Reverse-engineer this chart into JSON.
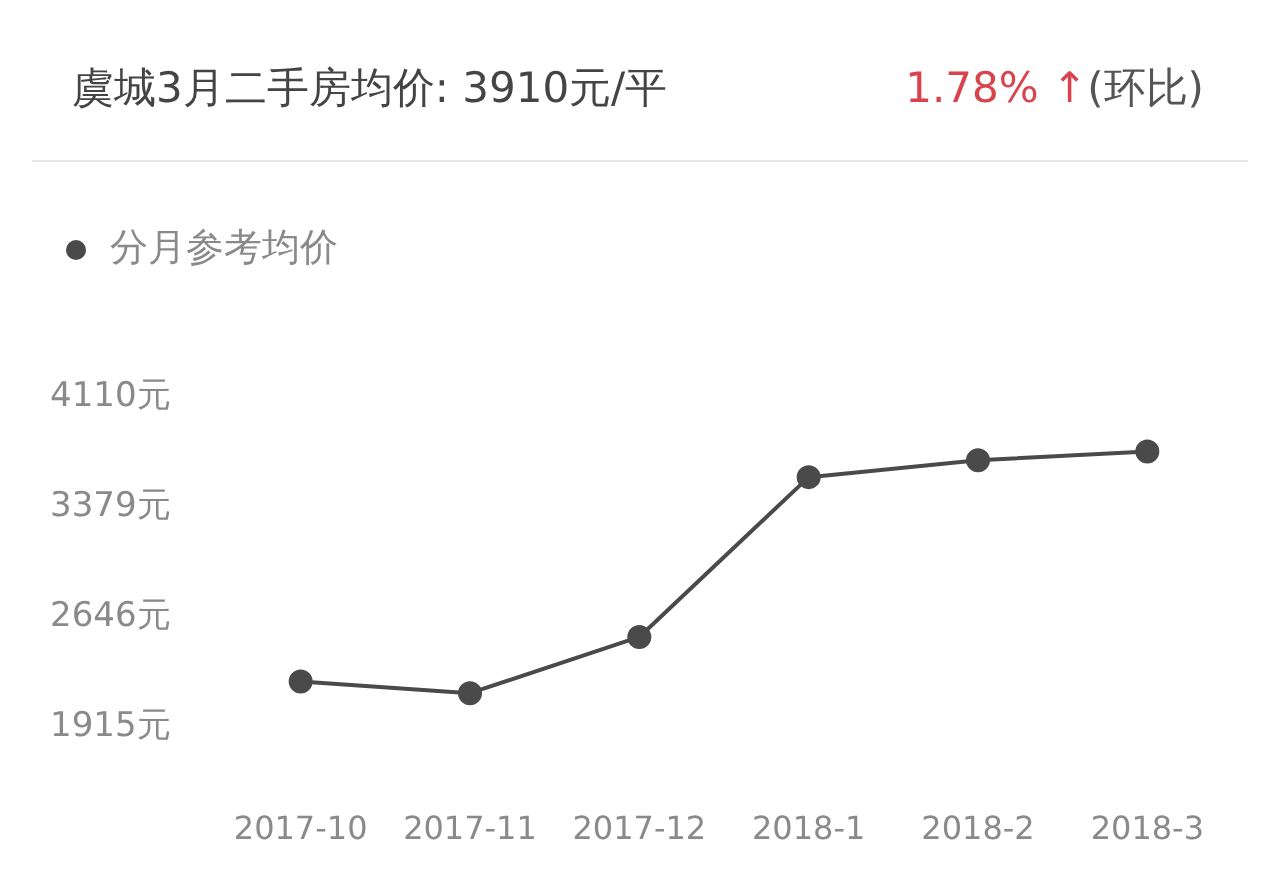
{
  "chart_data": {
    "type": "line",
    "title": "虞城3月二手房均价: 3910元/平",
    "annotations": [
      "1.78% ↑",
      "(环比)"
    ],
    "categories": [
      "2017-10",
      "2017-11",
      "2017-12",
      "2018-1",
      "2018-2",
      "2018-3"
    ],
    "series": [
      {
        "name": "分月参考均价",
        "color": "#4a4a4a",
        "values": [
          2197,
          2120,
          2494,
          3557,
          3669,
          3728
        ]
      }
    ],
    "ylim": [
      1915,
      4110
    ],
    "yticks": [
      {
        "value": 1915,
        "label": "1915元"
      },
      {
        "value": 2646,
        "label": "2646元"
      },
      {
        "value": 3379,
        "label": "3379元"
      },
      {
        "value": 4110,
        "label": "4110元"
      }
    ],
    "grid": false,
    "legend": "top left",
    "marker": "circle",
    "line_style": "solid"
  }
}
